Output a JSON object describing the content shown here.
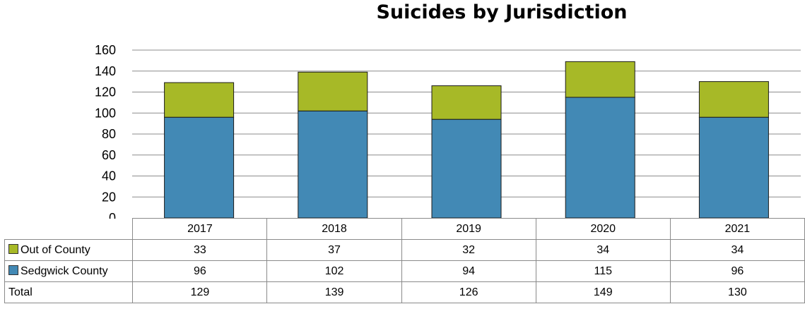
{
  "chart_data": {
    "type": "bar",
    "stacked": true,
    "title": "Suicides by Jurisdiction",
    "categories": [
      "2017",
      "2018",
      "2019",
      "2020",
      "2021"
    ],
    "series": [
      {
        "name": "Sedgwick County",
        "values": [
          96,
          102,
          94,
          115,
          96
        ],
        "color": "#4289b5"
      },
      {
        "name": "Out of County",
        "values": [
          33,
          37,
          32,
          34,
          34
        ],
        "color": "#a7b927"
      }
    ],
    "totals": {
      "name": "Total",
      "values": [
        129,
        139,
        126,
        149,
        130
      ]
    },
    "ylim": [
      0,
      160
    ],
    "yticks": [
      0,
      20,
      40,
      60,
      80,
      100,
      120,
      140,
      160
    ],
    "grid": true,
    "legend": "data-table"
  }
}
